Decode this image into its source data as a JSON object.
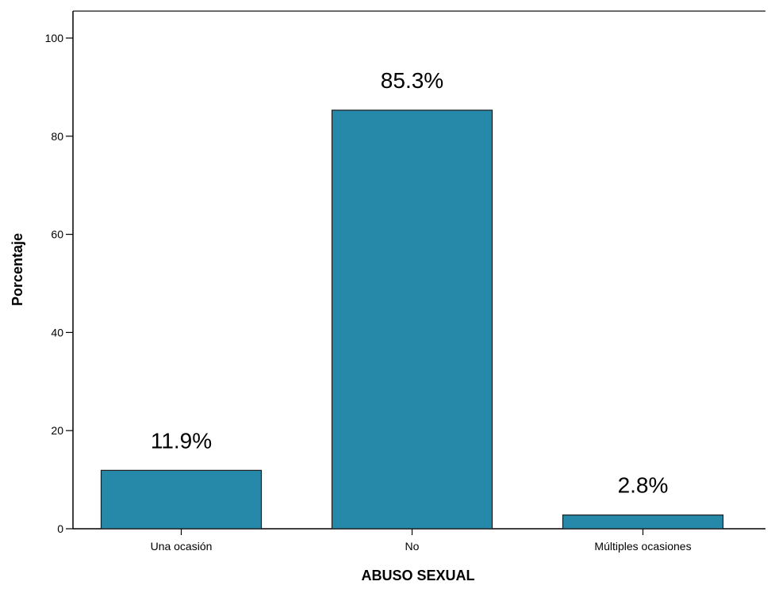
{
  "chart_data": {
    "type": "bar",
    "categories": [
      "Una ocasión",
      "No",
      "Múltiples ocasiones"
    ],
    "values": [
      11.9,
      85.3,
      2.8
    ],
    "data_labels": [
      "11.9%",
      "85.3%",
      "2.8%"
    ],
    "xlabel": "ABUSO SEXUAL",
    "ylabel": "Porcentaje",
    "ylim": [
      0,
      100
    ],
    "yticks": [
      0,
      20,
      40,
      60,
      80,
      100
    ],
    "grid": false,
    "legend": "none",
    "bar_color": "#2789a9",
    "bar_edge_color": "#1b1b1b"
  }
}
